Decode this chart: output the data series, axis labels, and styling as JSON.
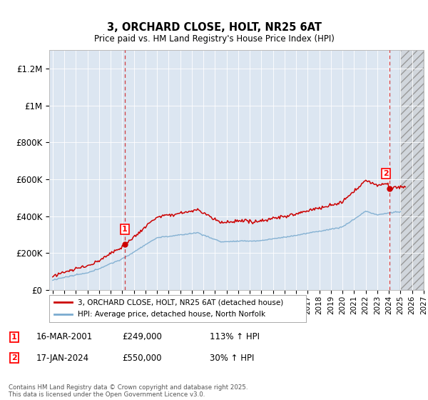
{
  "title": "3, ORCHARD CLOSE, HOLT, NR25 6AT",
  "subtitle": "Price paid vs. HM Land Registry's House Price Index (HPI)",
  "bg_color": "#dce6f1",
  "grid_color": "#ffffff",
  "red_color": "#cc0000",
  "blue_color": "#7aabcf",
  "sale1_year": 2001.21,
  "sale1_price": 249000,
  "sale1_label": "1",
  "sale1_date": "16-MAR-2001",
  "sale1_hpi_pct": "113%",
  "sale2_year": 2024.04,
  "sale2_price": 550000,
  "sale2_label": "2",
  "sale2_date": "17-JAN-2024",
  "sale2_hpi_pct": "30%",
  "ylim_max": 1300000,
  "xmin": 1994.7,
  "xmax": 2027.0,
  "future_start": 2025.0,
  "legend_label_red": "3, ORCHARD CLOSE, HOLT, NR25 6AT (detached house)",
  "legend_label_blue": "HPI: Average price, detached house, North Norfolk",
  "footer": "Contains HM Land Registry data © Crown copyright and database right 2025.\nThis data is licensed under the Open Government Licence v3.0.",
  "yticks": [
    0,
    200000,
    400000,
    600000,
    800000,
    1000000,
    1200000
  ],
  "ytick_labels": [
    "£0",
    "£200K",
    "£400K",
    "£600K",
    "£800K",
    "£1M",
    "£1.2M"
  ]
}
